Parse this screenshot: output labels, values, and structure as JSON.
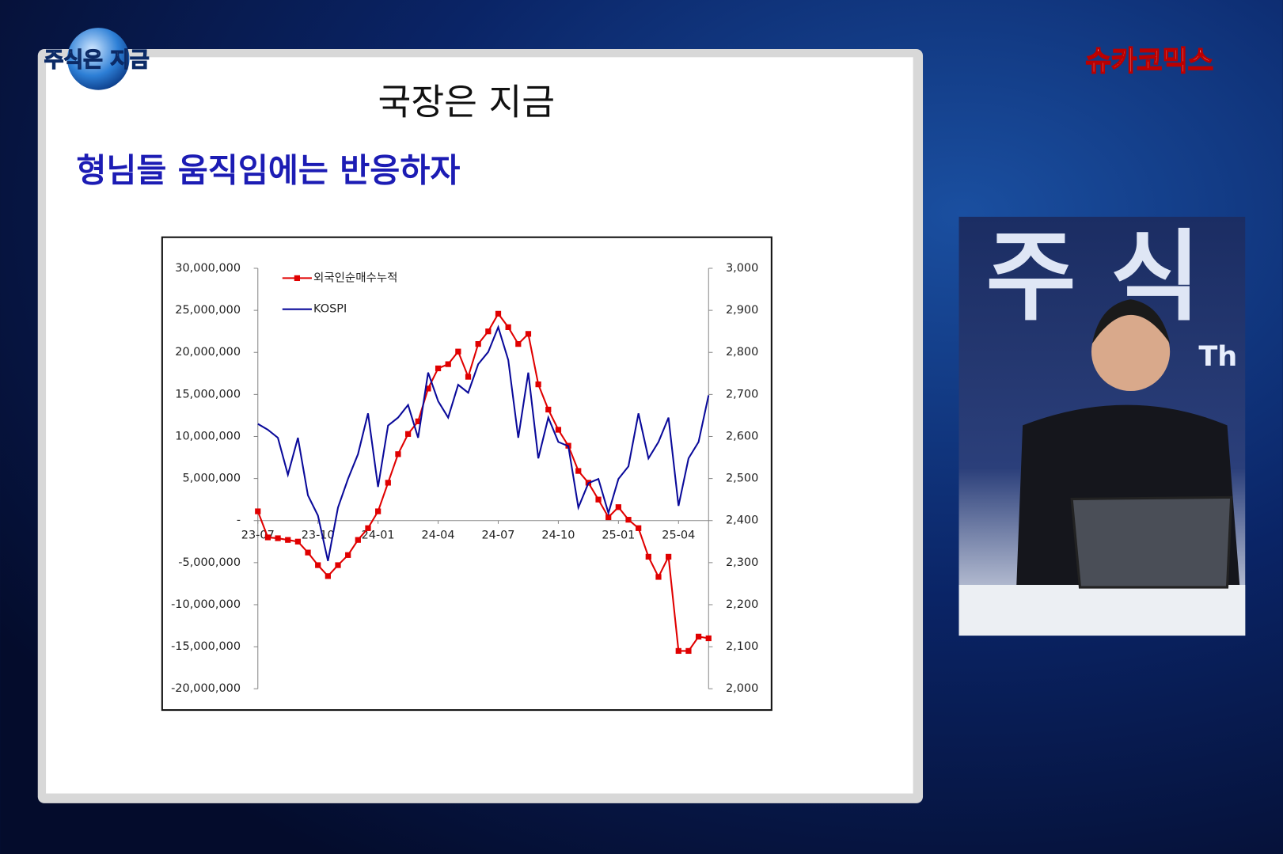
{
  "overlay": {
    "show_logo": "주식은 지금",
    "channel_logo": "슈카코믹스",
    "backdrop_text": "주 식",
    "backdrop_sub": "Th"
  },
  "slide": {
    "title": "국장은 지금",
    "subtitle": "형님들 움직임에는 반응하자"
  },
  "chart_data": {
    "type": "line",
    "legend": "upper left",
    "categories": [
      "23-07",
      null,
      null,
      null,
      null,
      null,
      "23-10",
      null,
      null,
      null,
      null,
      null,
      "24-01",
      null,
      null,
      null,
      null,
      null,
      "24-04",
      null,
      null,
      null,
      null,
      null,
      "24-07",
      null,
      null,
      null,
      null,
      null,
      "24-10",
      null,
      null,
      null,
      null,
      null,
      "25-01",
      null,
      null,
      null,
      null,
      null,
      "25-04",
      null,
      null,
      null
    ],
    "series": [
      {
        "name": "외국인순매수누적",
        "color": "#e00000",
        "marker": "square",
        "values": [
          1100000,
          -2000000,
          -2100000,
          -2300000,
          -2500000,
          -3800000,
          -5300000,
          -6600000,
          -5300000,
          -4100000,
          -2300000,
          -900000,
          1100000,
          4500000,
          7900000,
          10300000,
          11800000,
          15700000,
          18100000,
          18600000,
          20100000,
          17100000,
          21000000,
          22500000,
          24600000,
          23000000,
          21000000,
          22200000,
          16200000,
          13200000,
          10800000,
          8900000,
          5900000,
          4500000,
          2500000,
          400000,
          1600000,
          100000,
          -900000,
          -4300000,
          -6700000,
          -4300000,
          -15500000,
          -15500000,
          -13800000,
          -14000000
        ]
      },
      {
        "name": "KOSPI",
        "color": "#0a0a9a",
        "axis": "y2",
        "values": [
          2630,
          2616,
          2597,
          2509,
          2597,
          2460,
          2412,
          2304,
          2431,
          2499,
          2558,
          2655,
          2480,
          2626,
          2645,
          2675,
          2597,
          2752,
          2684,
          2645,
          2723,
          2704,
          2772,
          2801,
          2860,
          2782,
          2597,
          2752,
          2548,
          2645,
          2587,
          2577,
          2431,
          2489,
          2499,
          2418,
          2499,
          2529,
          2655,
          2548,
          2587,
          2645,
          2435,
          2548,
          2587,
          2698
        ]
      }
    ],
    "ylim": [
      -20000000,
      30000000
    ],
    "yticks": [
      {
        "value": -20000000,
        "label": "-20,000,000"
      },
      {
        "value": -15000000,
        "label": "-15,000,000"
      },
      {
        "value": -10000000,
        "label": "-10,000,000"
      },
      {
        "value": -5000000,
        "label": "-5,000,000"
      },
      {
        "value": 0,
        "label": "-"
      },
      {
        "value": 5000000,
        "label": "5,000,000"
      },
      {
        "value": 10000000,
        "label": "10,000,000"
      },
      {
        "value": 15000000,
        "label": "15,000,000"
      },
      {
        "value": 20000000,
        "label": "20,000,000"
      },
      {
        "value": 25000000,
        "label": "25,000,000"
      },
      {
        "value": 30000000,
        "label": "30,000,000"
      }
    ],
    "y2lim": [
      2000,
      3000
    ],
    "y2ticks": [
      {
        "value": 2000,
        "label": "2,000"
      },
      {
        "value": 2100,
        "label": "2,100"
      },
      {
        "value": 2200,
        "label": "2,200"
      },
      {
        "value": 2300,
        "label": "2,300"
      },
      {
        "value": 2400,
        "label": "2,400"
      },
      {
        "value": 2500,
        "label": "2,500"
      },
      {
        "value": 2600,
        "label": "2,600"
      },
      {
        "value": 2700,
        "label": "2,700"
      },
      {
        "value": 2800,
        "label": "2,800"
      },
      {
        "value": 2900,
        "label": "2,900"
      },
      {
        "value": 3000,
        "label": "3,000"
      }
    ],
    "grid": false
  }
}
